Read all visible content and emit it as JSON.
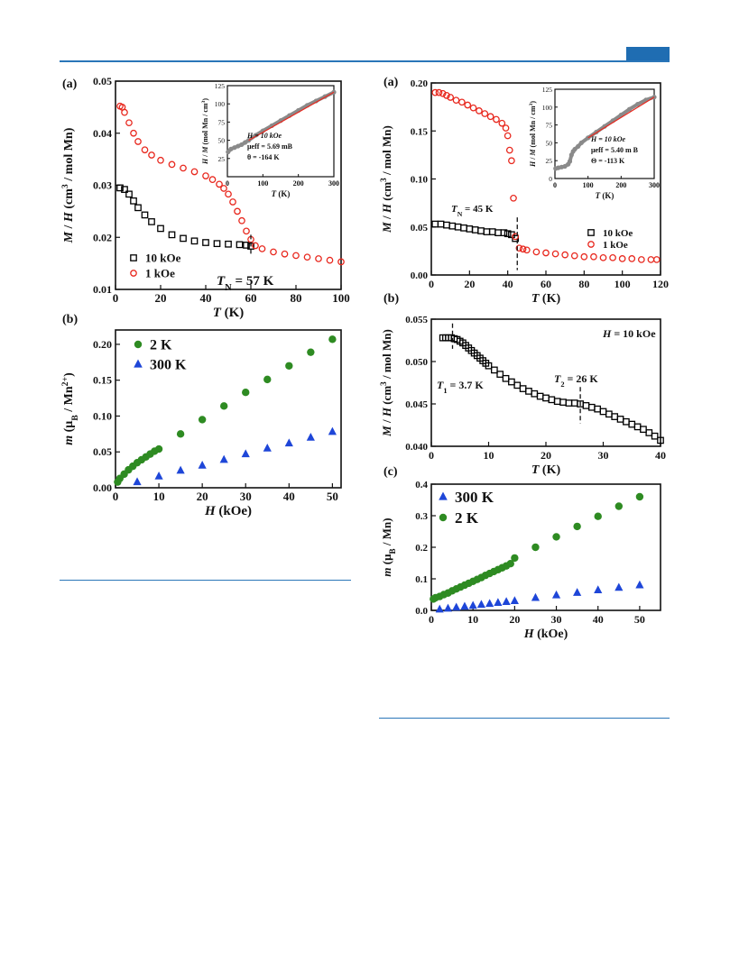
{
  "header": {
    "accent_color": "#1f6db2"
  },
  "chart_data": [
    {
      "id": "left-a",
      "panel_label": "(a)",
      "type": "scatter",
      "xlabel": "T (K)",
      "ylabel": "M / H (cm3 / mol Mn)",
      "xlim": [
        0,
        100
      ],
      "ylim": [
        0.01,
        0.05
      ],
      "xticks": [
        "0",
        "20",
        "40",
        "60",
        "80",
        "100"
      ],
      "yticks": [
        "0.01",
        "0.02",
        "0.03",
        "0.04",
        "0.05"
      ],
      "annotations": [
        "TN = 57 K"
      ],
      "marker_line_x": 60,
      "legend": {
        "position": "bottom-left"
      },
      "series": [
        {
          "name": "10 kOe",
          "marker": "square",
          "color": "#000000",
          "x": [
            2,
            4,
            6,
            8,
            10,
            13,
            16,
            20,
            25,
            30,
            35,
            40,
            45,
            50,
            55,
            58,
            60
          ],
          "y": [
            0.0295,
            0.0292,
            0.0283,
            0.027,
            0.0257,
            0.0243,
            0.023,
            0.0217,
            0.0205,
            0.0198,
            0.0193,
            0.019,
            0.0188,
            0.0187,
            0.0186,
            0.0185,
            0.0183
          ]
        },
        {
          "name": "1 kOe",
          "marker": "circle",
          "color": "#e8281e",
          "x": [
            2,
            3,
            4,
            6,
            8,
            10,
            13,
            16,
            20,
            25,
            30,
            35,
            40,
            43,
            46,
            48,
            50,
            52,
            54,
            56,
            58,
            60,
            62,
            65,
            70,
            75,
            80,
            85,
            90,
            95,
            100
          ],
          "y": [
            0.0452,
            0.045,
            0.044,
            0.042,
            0.04,
            0.0384,
            0.0368,
            0.0358,
            0.0348,
            0.034,
            0.0333,
            0.0326,
            0.0318,
            0.0311,
            0.0302,
            0.0294,
            0.0283,
            0.0268,
            0.025,
            0.0232,
            0.0212,
            0.0196,
            0.0184,
            0.0178,
            0.0172,
            0.0168,
            0.0165,
            0.0162,
            0.0159,
            0.0156,
            0.0153
          ]
        }
      ],
      "inset": {
        "xlabel": "T (K)",
        "ylabel": "H / M (mol Mn / cm3)",
        "xlim": [
          0,
          300
        ],
        "ylim": [
          0,
          125
        ],
        "xticks": [
          "0",
          "100",
          "200",
          "300"
        ],
        "yticks": [
          "25",
          "50",
          "75",
          "100",
          "125"
        ],
        "lines": [
          "H = 10 kOe",
          "μeff = 5.69 mB",
          "θ = -164 K"
        ],
        "data_x": [
          2,
          10,
          20,
          30,
          40,
          50,
          60,
          80,
          100,
          125,
          150,
          175,
          200,
          225,
          250,
          275,
          300
        ],
        "data_y": [
          34,
          38,
          40,
          42,
          44,
          47,
          50,
          57,
          63,
          70,
          77,
          84,
          91,
          98,
          104,
          110,
          116
        ],
        "fit_x": [
          60,
          300
        ],
        "fit_y": [
          50,
          116
        ]
      }
    },
    {
      "id": "left-b",
      "panel_label": "(b)",
      "type": "scatter",
      "xlabel": "H (kOe)",
      "ylabel": "m (μB / Mn2+)",
      "xlim": [
        0,
        52
      ],
      "ylim": [
        0,
        0.22
      ],
      "xticks": [
        "0",
        "10",
        "20",
        "30",
        "40",
        "50"
      ],
      "yticks": [
        "0.00",
        "0.05",
        "0.10",
        "0.15",
        "0.20"
      ],
      "legend": {
        "position": "top-left"
      },
      "series": [
        {
          "name": "2 K",
          "marker": "circle",
          "color": "#2e8b22",
          "x": [
            0.5,
            1,
            2,
            3,
            4,
            5,
            6,
            7,
            8,
            9,
            10,
            15,
            20,
            25,
            30,
            35,
            40,
            45,
            50
          ],
          "y": [
            0.008,
            0.013,
            0.019,
            0.025,
            0.03,
            0.035,
            0.039,
            0.043,
            0.047,
            0.051,
            0.054,
            0.075,
            0.095,
            0.114,
            0.133,
            0.151,
            0.17,
            0.189,
            0.207
          ]
        },
        {
          "name": "300 K",
          "marker": "triangle",
          "color": "#1e46d8",
          "x": [
            5,
            10,
            15,
            20,
            25,
            30,
            35,
            40,
            45,
            50
          ],
          "y": [
            0.008,
            0.016,
            0.024,
            0.031,
            0.039,
            0.047,
            0.055,
            0.062,
            0.07,
            0.078
          ]
        }
      ]
    },
    {
      "id": "right-a",
      "panel_label": "(a)",
      "type": "scatter",
      "xlabel": "T (K)",
      "ylabel": "M / H (cm3 / mol Mn)",
      "xlim": [
        0,
        120
      ],
      "ylim": [
        0,
        0.2
      ],
      "xticks": [
        "0",
        "20",
        "40",
        "60",
        "80",
        "100",
        "120"
      ],
      "yticks": [
        "0.00",
        "0.05",
        "0.10",
        "0.15",
        "0.20"
      ],
      "annotations": [
        "TN = 45 K"
      ],
      "marker_line_x": 45,
      "legend": {
        "position": "bottom-right"
      },
      "series": [
        {
          "name": "10 kOe",
          "marker": "square",
          "color": "#000000",
          "x": [
            2,
            5,
            8,
            11,
            14,
            17,
            20,
            23,
            26,
            29,
            32,
            35,
            38,
            40,
            42,
            44
          ],
          "y": [
            0.053,
            0.053,
            0.052,
            0.051,
            0.05,
            0.049,
            0.048,
            0.047,
            0.046,
            0.045,
            0.045,
            0.044,
            0.044,
            0.043,
            0.042,
            0.038
          ]
        },
        {
          "name": "1 kOe",
          "marker": "circle",
          "color": "#e8281e",
          "x": [
            2,
            4,
            6,
            8,
            10,
            13,
            16,
            19,
            22,
            25,
            28,
            31,
            34,
            37,
            39,
            40,
            41,
            42,
            43,
            44,
            46,
            48,
            50,
            55,
            60,
            65,
            70,
            75,
            80,
            85,
            90,
            95,
            100,
            105,
            110,
            115,
            118
          ],
          "y": [
            0.19,
            0.19,
            0.189,
            0.187,
            0.185,
            0.182,
            0.18,
            0.177,
            0.174,
            0.171,
            0.168,
            0.165,
            0.162,
            0.158,
            0.153,
            0.145,
            0.13,
            0.119,
            0.08,
            0.04,
            0.028,
            0.027,
            0.026,
            0.024,
            0.023,
            0.022,
            0.021,
            0.02,
            0.019,
            0.019,
            0.018,
            0.018,
            0.017,
            0.017,
            0.016,
            0.016,
            0.016
          ]
        }
      ],
      "inset": {
        "xlabel": "T (K)",
        "ylabel": "H / M (mol Mn / cm3)",
        "xlim": [
          0,
          300
        ],
        "ylim": [
          0,
          125
        ],
        "xticks": [
          "0",
          "100",
          "200",
          "300"
        ],
        "yticks": [
          "0",
          "25",
          "50",
          "75",
          "100",
          "125"
        ],
        "lines": [
          "H = 10 kOe",
          "μeff = 5.40 m B",
          "Θ = -113 K"
        ],
        "data_x": [
          2,
          10,
          20,
          30,
          40,
          45,
          50,
          55,
          60,
          70,
          80,
          100,
          125,
          150,
          175,
          200,
          225,
          250,
          275,
          300
        ],
        "data_y": [
          14,
          15,
          16,
          17,
          20,
          24,
          33,
          38,
          41,
          45,
          50,
          57,
          65,
          73,
          81,
          89,
          97,
          104,
          110,
          114
        ],
        "fit_x": [
          100,
          300
        ],
        "fit_y": [
          57,
          114
        ]
      }
    },
    {
      "id": "right-b",
      "panel_label": "(b)",
      "type": "scatter",
      "xlabel": "T (K)",
      "ylabel": "M / H (cm3 / mol Mn)",
      "xlim": [
        0,
        40
      ],
      "ylim": [
        0.04,
        0.055
      ],
      "xticks": [
        "0",
        "10",
        "20",
        "30",
        "40"
      ],
      "yticks": [
        "0.040",
        "0.045",
        "0.050",
        "0.055"
      ],
      "annotations": [
        "H = 10 kOe",
        "T1 = 3.7 K",
        "T2 = 26 K"
      ],
      "marker_lines_x": [
        3.7,
        26
      ],
      "series": [
        {
          "name": "10 kOe",
          "marker": "square",
          "color": "#000000",
          "x": [
            2,
            2.5,
            3,
            3.5,
            4,
            4.5,
            5,
            5.5,
            6,
            6.5,
            7,
            7.5,
            8,
            8.5,
            9,
            9.5,
            10,
            11,
            12,
            13,
            14,
            15,
            16,
            17,
            18,
            19,
            20,
            21,
            22,
            23,
            24,
            25,
            26,
            27,
            28,
            29,
            30,
            31,
            32,
            33,
            34,
            35,
            36,
            37,
            38,
            39,
            40
          ],
          "y": [
            0.0528,
            0.0528,
            0.0528,
            0.0528,
            0.0527,
            0.0526,
            0.0524,
            0.0522,
            0.0519,
            0.0516,
            0.0513,
            0.051,
            0.0507,
            0.0504,
            0.0501,
            0.0498,
            0.0495,
            0.049,
            0.0485,
            0.048,
            0.0476,
            0.0472,
            0.0468,
            0.0465,
            0.0462,
            0.0459,
            0.0457,
            0.0455,
            0.0453,
            0.0452,
            0.0451,
            0.0451,
            0.045,
            0.0448,
            0.0446,
            0.0444,
            0.0441,
            0.0438,
            0.0435,
            0.0432,
            0.0429,
            0.0426,
            0.0423,
            0.042,
            0.0416,
            0.0412,
            0.0407
          ]
        }
      ]
    },
    {
      "id": "right-c",
      "panel_label": "(c)",
      "type": "scatter",
      "xlabel": "H (kOe)",
      "ylabel": "m (μB / Mn)",
      "xlim": [
        0,
        55
      ],
      "ylim": [
        0,
        0.4
      ],
      "xticks": [
        "0",
        "10",
        "20",
        "30",
        "40",
        "50"
      ],
      "yticks": [
        "0.0",
        "0.1",
        "0.2",
        "0.3",
        "0.4"
      ],
      "legend": {
        "position": "top-left"
      },
      "series": [
        {
          "name": "300 K",
          "marker": "triangle",
          "color": "#1e46d8",
          "x": [
            2,
            4,
            6,
            8,
            10,
            12,
            14,
            16,
            18,
            20,
            25,
            30,
            35,
            40,
            45,
            50
          ],
          "y": [
            0.003,
            0.006,
            0.009,
            0.012,
            0.015,
            0.018,
            0.021,
            0.024,
            0.027,
            0.03,
            0.04,
            0.048,
            0.056,
            0.064,
            0.072,
            0.08
          ]
        },
        {
          "name": "2 K",
          "marker": "circle",
          "color": "#2e8b22",
          "x": [
            0.5,
            1,
            2,
            3,
            4,
            5,
            6,
            7,
            8,
            9,
            10,
            11,
            12,
            13,
            14,
            15,
            16,
            17,
            18,
            19,
            20,
            25,
            30,
            35,
            40,
            45,
            50
          ],
          "y": [
            0.036,
            0.04,
            0.044,
            0.05,
            0.055,
            0.062,
            0.068,
            0.074,
            0.08,
            0.086,
            0.092,
            0.098,
            0.104,
            0.111,
            0.117,
            0.123,
            0.129,
            0.135,
            0.141,
            0.148,
            0.166,
            0.2,
            0.233,
            0.266,
            0.298,
            0.33,
            0.36
          ]
        }
      ]
    }
  ]
}
